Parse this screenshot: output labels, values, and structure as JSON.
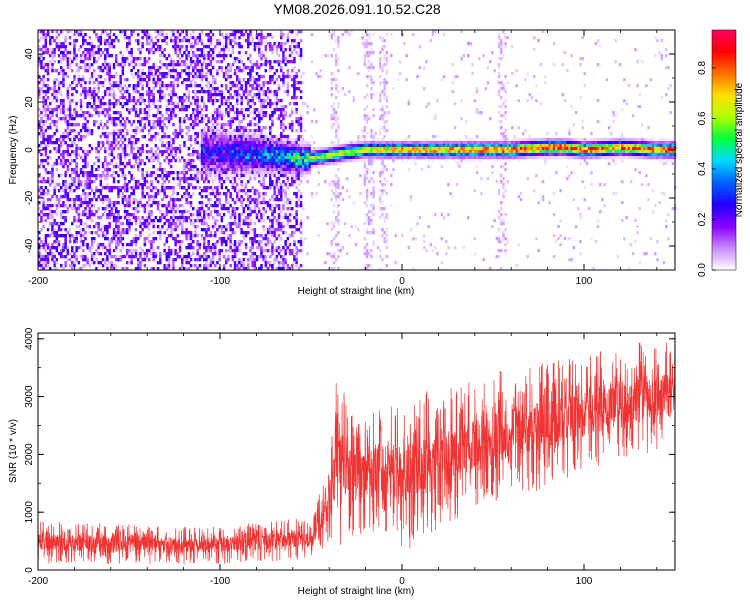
{
  "title": "YM08.2026.091.10.52.C28",
  "chart_data": [
    {
      "type": "heatmap",
      "name": "spectrogram",
      "xlabel": "Height of straight line (km)",
      "ylabel": "Frequency (Hz)",
      "xlim": [
        -200,
        150
      ],
      "ylim": [
        -50,
        50
      ],
      "x_ticks": [
        -200,
        -100,
        0,
        100
      ],
      "y_ticks": [
        -40,
        -20,
        0,
        20,
        40
      ],
      "x_tick_labels": [
        "-200",
        "-100",
        "0",
        "100"
      ],
      "y_tick_labels": [
        "-40",
        "-20",
        "0",
        "20",
        "40"
      ],
      "colorbar": {
        "label": "Normalized spectral amplitude",
        "range": [
          0.0,
          0.95
        ],
        "ticks": [
          0.0,
          0.2,
          0.4,
          0.6,
          0.8
        ],
        "tick_labels": [
          "0.0",
          "0.2",
          "0.4",
          "0.6",
          "0.8"
        ],
        "colormap": [
          "#ffffff",
          "#c98bff",
          "#8a00ff",
          "#2000ff",
          "#0060ff",
          "#00d8ff",
          "#00ff40",
          "#b0ff00",
          "#ffe000",
          "#ff7000",
          "#ff0000",
          "#ff0060"
        ]
      },
      "noise_region_x": [
        -200,
        -55
      ],
      "ridge": {
        "x": [
          -100,
          -80,
          -65,
          -55,
          -45,
          -30,
          -20,
          -10,
          0,
          20,
          40,
          60,
          80,
          90,
          100,
          120,
          140,
          150
        ],
        "frequency": [
          -1,
          -2,
          -3,
          -4,
          -3,
          -1,
          0,
          0,
          0,
          0,
          0,
          0,
          1,
          1,
          0,
          1,
          0,
          0
        ],
        "amplitude": [
          0.25,
          0.35,
          0.4,
          0.55,
          0.65,
          0.7,
          0.75,
          0.75,
          0.8,
          0.8,
          0.85,
          0.9,
          0.9,
          0.95,
          0.9,
          0.85,
          0.9,
          0.9
        ]
      }
    },
    {
      "type": "line",
      "name": "snr",
      "xlabel": "Height of straight line (km)",
      "ylabel": "SNR (10 * v/v)",
      "xlim": [
        -200,
        150
      ],
      "ylim": [
        0,
        4100
      ],
      "x_ticks": [
        -200,
        -100,
        0,
        100
      ],
      "y_ticks": [
        0,
        1000,
        2000,
        3000,
        4000
      ],
      "x_tick_labels": [
        "-200",
        "-100",
        "0",
        "100"
      ],
      "y_tick_labels": [
        "0",
        "1000",
        "2000",
        "3000",
        "4000"
      ],
      "color": "#f03434",
      "envelope": {
        "x": [
          -200,
          -150,
          -100,
          -70,
          -50,
          -45,
          -40,
          -36,
          -34,
          -30,
          -25,
          -20,
          -10,
          0,
          10,
          20,
          40,
          60,
          80,
          100,
          120,
          150
        ],
        "lower": [
          100,
          100,
          100,
          150,
          200,
          300,
          500,
          600,
          300,
          400,
          500,
          600,
          700,
          300,
          400,
          700,
          1000,
          1300,
          1400,
          1700,
          1900,
          2100
        ],
        "upper": [
          850,
          800,
          750,
          900,
          900,
          1400,
          1800,
          3400,
          3300,
          2900,
          2800,
          2600,
          2900,
          2900,
          3100,
          3100,
          3300,
          3500,
          3600,
          3700,
          3900,
          4000
        ]
      }
    }
  ]
}
